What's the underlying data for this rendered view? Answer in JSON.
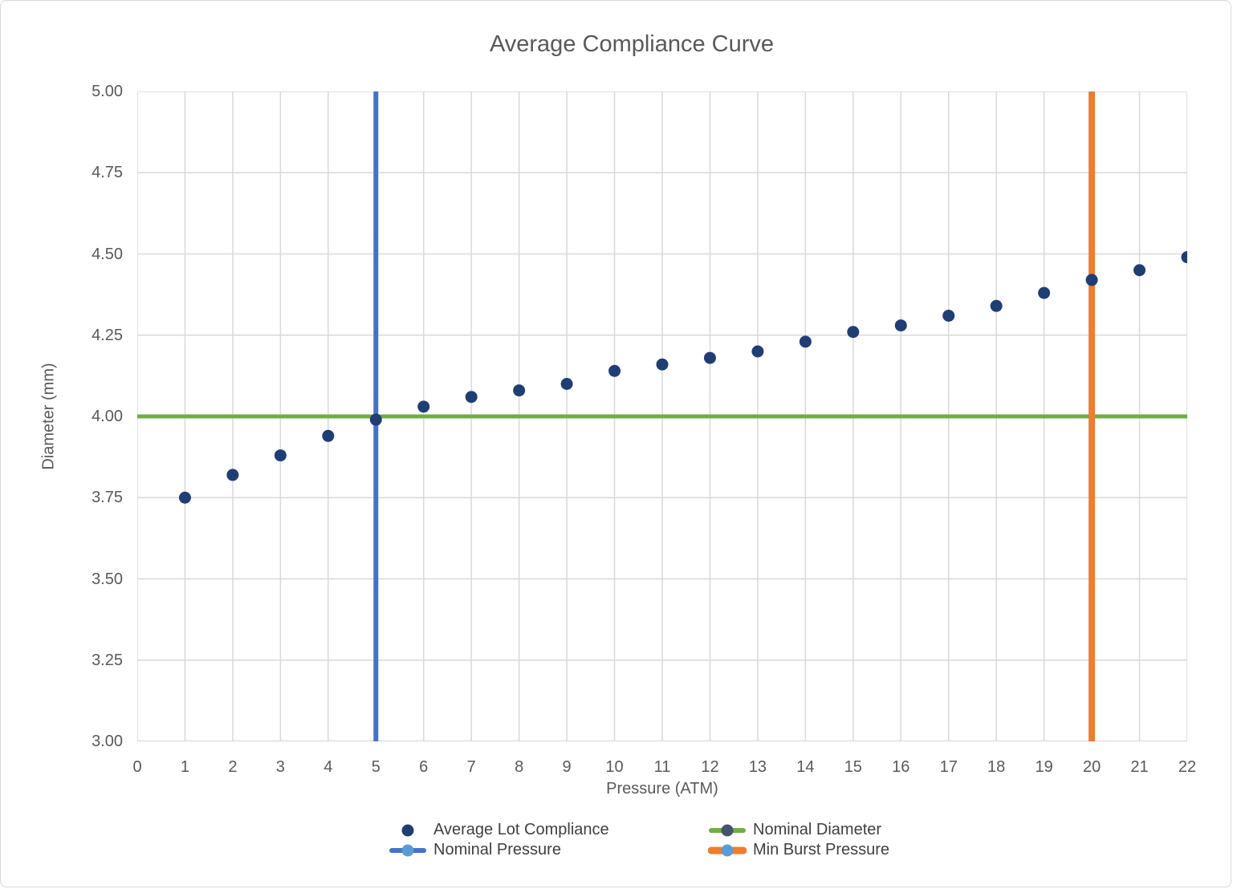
{
  "title": "Average Compliance Curve",
  "chart_data": {
    "type": "scatter",
    "title": "Average Compliance Curve",
    "xlabel": "Pressure (ATM)",
    "ylabel": "Diameter (mm)",
    "xlim": [
      0,
      22
    ],
    "ylim": [
      3.0,
      5.0
    ],
    "x_ticks": [
      0,
      1,
      2,
      3,
      4,
      5,
      6,
      7,
      8,
      9,
      10,
      11,
      12,
      13,
      14,
      15,
      16,
      17,
      18,
      19,
      20,
      21,
      22
    ],
    "y_tick_labels": [
      "3.00",
      "3.25",
      "3.50",
      "3.75",
      "4.00",
      "4.25",
      "4.50",
      "4.75",
      "5.00"
    ],
    "grid": true,
    "legend_position": "bottom",
    "series": [
      {
        "name": "Average Lot Compliance",
        "kind": "scatter",
        "color": "#203E73",
        "x": [
          1,
          2,
          3,
          4,
          5,
          6,
          7,
          8,
          9,
          10,
          11,
          12,
          13,
          14,
          15,
          16,
          17,
          18,
          19,
          20,
          21,
          22
        ],
        "y": [
          3.75,
          3.82,
          3.88,
          3.94,
          3.99,
          4.03,
          4.06,
          4.08,
          4.1,
          4.14,
          4.16,
          4.18,
          4.2,
          4.23,
          4.26,
          4.28,
          4.31,
          4.34,
          4.38,
          4.42,
          4.45,
          4.49
        ]
      },
      {
        "name": "Nominal Diameter",
        "kind": "hline",
        "y": 4.0,
        "color": "#70AD47"
      },
      {
        "name": "Nominal Pressure",
        "kind": "vline",
        "x": 5,
        "color": "#4472C4"
      },
      {
        "name": "Min Burst Pressure",
        "kind": "vline",
        "x": 20,
        "color": "#ED7D31"
      }
    ],
    "legend": [
      {
        "label": "Average Lot Compliance",
        "marker": "dot",
        "line_color": null,
        "dot_color": "#203E73"
      },
      {
        "label": "Nominal Diameter",
        "marker": "line-dot",
        "line_color": "#70AD47",
        "dot_color": "#44546A"
      },
      {
        "label": "Nominal Pressure",
        "marker": "line-dot",
        "line_color": "#4472C4",
        "dot_color": "#5B9BD5"
      },
      {
        "label": "Min Burst Pressure",
        "marker": "line-dot",
        "line_color": "#ED7D31",
        "dot_color": "#5B9BD5"
      }
    ]
  },
  "style_colors": {
    "gridline": "#D9D9D9",
    "axis_line": "#D3D3D3",
    "text_gray": "#595959",
    "legend_text": "#404040"
  }
}
